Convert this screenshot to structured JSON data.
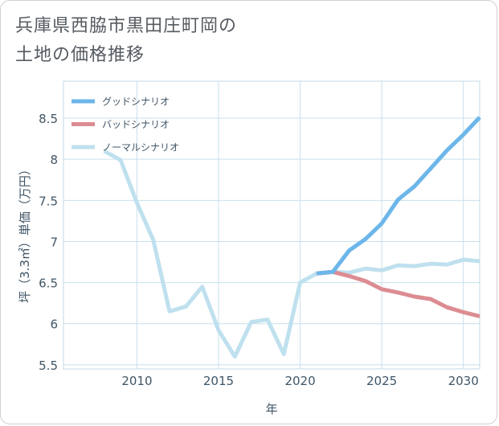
{
  "title_lines": [
    "兵庫県西脇市黒田庄町岡の",
    "土地の価格推移"
  ],
  "chart_data": {
    "type": "line",
    "title": "兵庫県西脇市黒田庄町岡の土地の価格推移",
    "xlabel": "年",
    "ylabel": "坪（3.3㎡）単価（万円）",
    "xlim": [
      2005.5,
      2031
    ],
    "ylim": [
      5.45,
      8.95
    ],
    "x_ticks": [
      2010,
      2015,
      2020,
      2025,
      2030
    ],
    "y_ticks": [
      5.5,
      6,
      6.5,
      7,
      7.5,
      8,
      8.5
    ],
    "x_tick_labels": [
      "2010",
      "2015",
      "2020",
      "2025",
      "2030"
    ],
    "y_tick_labels": [
      "5.5",
      "6",
      "6.5",
      "7",
      "7.5",
      "8",
      "8.5"
    ],
    "grid": true,
    "legend_position": "top-left",
    "series": [
      {
        "name": "グッドシナリオ",
        "color": "#6cb6ea",
        "x": [
          2021,
          2022,
          2023,
          2024,
          2025,
          2026,
          2027,
          2028,
          2029,
          2030,
          2031
        ],
        "values": [
          6.61,
          6.63,
          6.89,
          7.03,
          7.22,
          7.51,
          7.67,
          7.89,
          8.11,
          8.3,
          8.51
        ]
      },
      {
        "name": "バッドシナリオ",
        "color": "#dc8c92",
        "x": [
          2021,
          2022,
          2023,
          2024,
          2025,
          2026,
          2027,
          2028,
          2029,
          2030,
          2031
        ],
        "values": [
          6.61,
          6.63,
          6.58,
          6.52,
          6.42,
          6.38,
          6.33,
          6.3,
          6.2,
          6.14,
          6.09
        ]
      },
      {
        "name": "ノーマルシナリオ",
        "color": "#bfe0ee",
        "x": [
          2008,
          2009,
          2010,
          2011,
          2012,
          2013,
          2014,
          2015,
          2016,
          2017,
          2018,
          2019,
          2020,
          2021,
          2022,
          2023,
          2024,
          2025,
          2026,
          2027,
          2028,
          2029,
          2030,
          2031
        ],
        "values": [
          8.1,
          7.99,
          7.47,
          7.02,
          6.15,
          6.21,
          6.45,
          5.92,
          5.6,
          6.02,
          6.05,
          5.63,
          6.5,
          6.61,
          6.63,
          6.62,
          6.67,
          6.65,
          6.71,
          6.7,
          6.73,
          6.72,
          6.78,
          6.76
        ]
      }
    ]
  }
}
